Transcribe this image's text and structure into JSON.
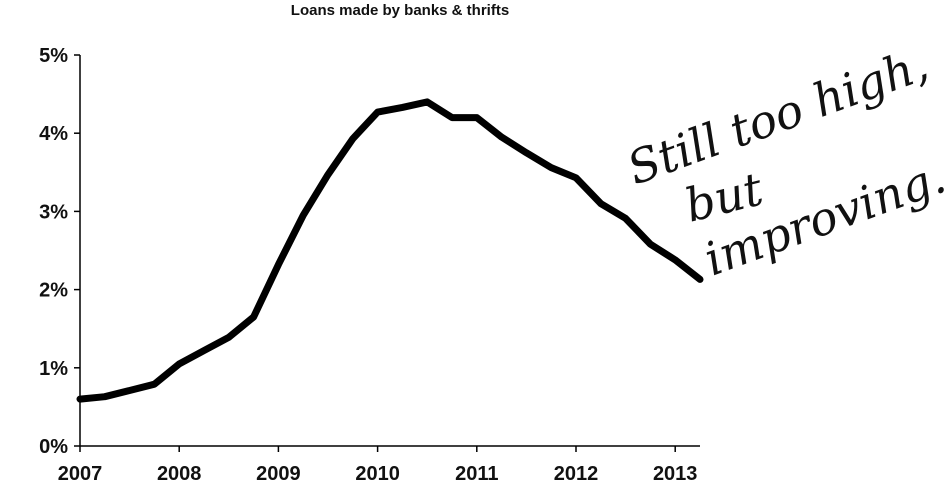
{
  "chart_data": {
    "type": "line",
    "title": "",
    "subtitle": "Loans made by banks & thrifts",
    "xlabel": "",
    "ylabel": "",
    "xlim": [
      2007,
      2013.25
    ],
    "ylim": [
      0,
      5
    ],
    "x_ticks": [
      "2007",
      "2008",
      "2009",
      "2010",
      "2011",
      "2012",
      "2013"
    ],
    "y_ticks": [
      "0%",
      "1%",
      "2%",
      "3%",
      "4%",
      "5%"
    ],
    "series": [
      {
        "x": [
          2007.0,
          2007.25,
          2007.5,
          2007.75,
          2008.0,
          2008.25,
          2008.5,
          2008.75,
          2009.0,
          2009.25,
          2009.5,
          2009.75,
          2010.0,
          2010.25,
          2010.5,
          2010.75,
          2011.0,
          2011.25,
          2011.5,
          2011.75,
          2012.0,
          2012.25,
          2012.5,
          2012.75,
          2013.0,
          2013.25
        ],
        "values": [
          0.6,
          0.63,
          0.71,
          0.79,
          1.05,
          1.22,
          1.39,
          1.65,
          2.32,
          2.95,
          3.47,
          3.93,
          4.27,
          4.33,
          4.4,
          4.2,
          4.2,
          3.95,
          3.75,
          3.56,
          3.43,
          3.1,
          2.91,
          2.58,
          2.38,
          2.13
        ],
        "color": "#000000"
      }
    ],
    "annotations": [
      "Still too high,",
      "but",
      "improving."
    ],
    "grid": false,
    "legend": "none"
  }
}
